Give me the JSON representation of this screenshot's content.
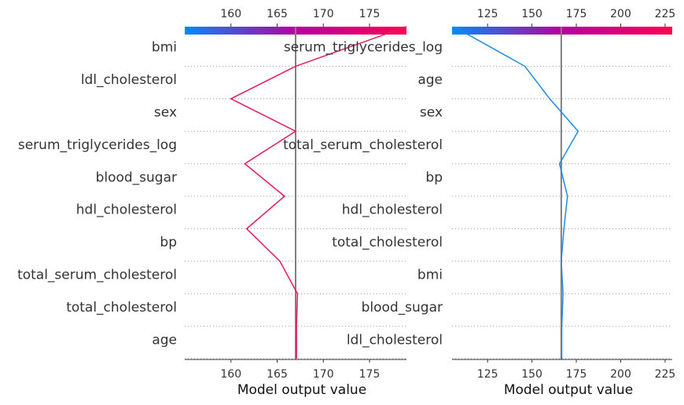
{
  "chart_data": [
    {
      "type": "line",
      "title": "",
      "xlabel": "Model output value",
      "ylabel": "",
      "xlim": [
        155,
        179
      ],
      "x_ticks": [
        160,
        165,
        170,
        175
      ],
      "base_value": 167.0,
      "colorbar": {
        "from": "#008bfb",
        "mid": "#b6009f",
        "to": "#ff0052"
      },
      "line_color": "#e8175d",
      "features": [
        "bmi",
        "ldl_cholesterol",
        "sex",
        "serum_triglycerides_log",
        "blood_sugar",
        "hdl_cholesterol",
        "bp",
        "total_serum_cholesterol",
        "total_cholesterol",
        "age"
      ],
      "path": [
        {
          "x": 179.0
        },
        {
          "x": 167.0,
          "feature": "bmi"
        },
        {
          "x": 160.0,
          "feature": "ldl_cholesterol"
        },
        {
          "x": 167.0,
          "feature": "sex"
        },
        {
          "x": 161.5,
          "feature": "serum_triglycerides_log"
        },
        {
          "x": 165.8,
          "feature": "blood_sugar"
        },
        {
          "x": 161.7,
          "feature": "hdl_cholesterol"
        },
        {
          "x": 165.3,
          "feature": "bp"
        },
        {
          "x": 167.2,
          "feature": "total_serum_cholesterol"
        },
        {
          "x": 167.1,
          "feature": "total_cholesterol"
        },
        {
          "x": 167.1,
          "feature": "age"
        }
      ]
    },
    {
      "type": "line",
      "title": "",
      "xlabel": "Model output value",
      "ylabel": "",
      "xlim": [
        105,
        229
      ],
      "x_ticks": [
        125,
        150,
        175,
        200,
        225
      ],
      "base_value": 166.5,
      "colorbar": {
        "from": "#008bfb",
        "mid": "#b6009f",
        "to": "#ff0052"
      },
      "line_color": "#1e88e5",
      "features": [
        "serum_triglycerides_log",
        "age",
        "sex",
        "total_serum_cholesterol",
        "bp",
        "hdl_cholesterol",
        "total_cholesterol",
        "bmi",
        "blood_sugar",
        "ldl_cholesterol"
      ],
      "path": [
        {
          "x": 106.0
        },
        {
          "x": 146.0,
          "feature": "serum_triglycerides_log"
        },
        {
          "x": 160.0,
          "feature": "age"
        },
        {
          "x": 176.0,
          "feature": "sex"
        },
        {
          "x": 165.5,
          "feature": "total_serum_cholesterol"
        },
        {
          "x": 170.0,
          "feature": "bp"
        },
        {
          "x": 168.0,
          "feature": "hdl_cholesterol"
        },
        {
          "x": 166.5,
          "feature": "total_cholesterol"
        },
        {
          "x": 167.5,
          "feature": "bmi"
        },
        {
          "x": 166.8,
          "feature": "blood_sugar"
        },
        {
          "x": 166.8,
          "feature": "ldl_cholesterol"
        }
      ]
    }
  ]
}
